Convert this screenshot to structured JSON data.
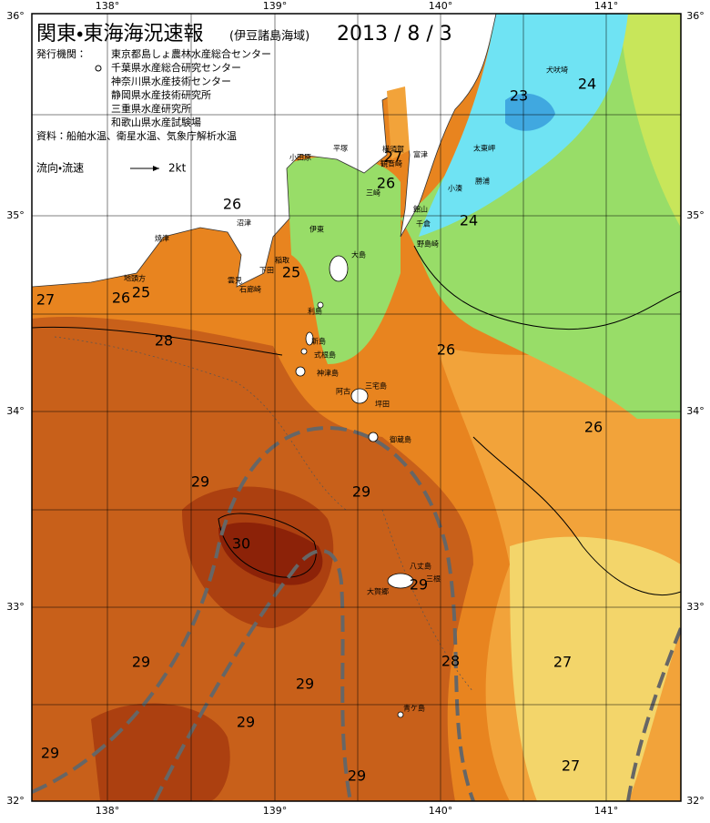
{
  "header": {
    "title": "関東・東海海況速報",
    "subtitle": "(伊豆諸島海域)",
    "date": "2013 / 8 / 3"
  },
  "publishers": {
    "label": "発行機関：",
    "items": [
      "東京都島しょ農林水産総合センター",
      "千葉県水産総合研究センター",
      "神奈川県水産技術センター",
      "静岡県水産技術研究所",
      "三重県水産研究所",
      "和歌山県水産試験場"
    ]
  },
  "source": "資料：船舶水温、衛星水温、気象庁解析水温",
  "legend": {
    "label": "流向・流速",
    "scale": "2kt"
  },
  "axes": {
    "lon_labels": [
      "138°",
      "139°",
      "140°",
      "141°"
    ],
    "lat_labels": [
      "36°",
      "35°",
      "34°",
      "33°",
      "32°"
    ]
  },
  "temperature_labels": [
    23,
    24,
    27,
    26,
    26,
    24,
    25,
    25,
    26,
    27,
    28,
    26,
    26,
    29,
    29,
    30,
    29,
    29,
    28,
    27,
    29,
    29,
    29,
    27,
    29
  ],
  "place_names": [
    "犬吠埼",
    "太東岬",
    "勝浦",
    "小湊",
    "館山",
    "千倉",
    "野島崎",
    "富津",
    "横須賀",
    "観音崎",
    "平塚",
    "小田原",
    "三崎",
    "伊東",
    "大島",
    "稲取",
    "下田",
    "石廊崎",
    "雲見",
    "沼津",
    "焼津",
    "地頭方",
    "利島",
    "新島",
    "式根島",
    "神津島",
    "三宅島",
    "阿古",
    "坪田",
    "御蔵島",
    "八丈島",
    "三根",
    "大賀郷",
    "青ケ島"
  ]
}
